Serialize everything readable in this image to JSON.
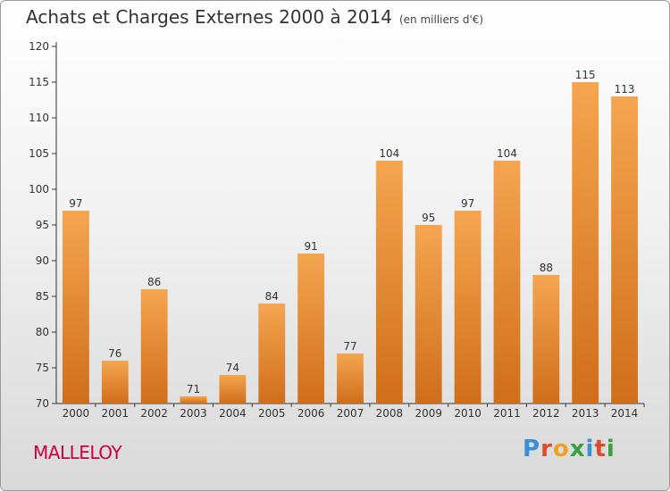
{
  "header": {
    "title": "Achats et Charges Externes 2000 à 2014",
    "unit": "(en milliers d'€)"
  },
  "footer": {
    "place": "MALLELOY",
    "logo": [
      "P",
      "r",
      "o",
      "x",
      "i",
      "t",
      "i"
    ]
  },
  "colors": {
    "bar_top": "#f5a550",
    "bar_bottom": "#d06e1a",
    "place": "#cc0044",
    "logo": [
      "#3a8fd6",
      "#e04a2a",
      "#f0a020",
      "#3aa040",
      "#3a8fd6",
      "#e04a2a",
      "#3aa040"
    ]
  },
  "chart_data": {
    "type": "bar",
    "title": "Achats et Charges Externes 2000 à 2014",
    "subtitle": "(en milliers d'€)",
    "categories": [
      "2000",
      "2001",
      "2002",
      "2003",
      "2004",
      "2005",
      "2006",
      "2007",
      "2008",
      "2009",
      "2010",
      "2011",
      "2012",
      "2013",
      "2014"
    ],
    "values": [
      97,
      76,
      86,
      71,
      74,
      84,
      91,
      77,
      104,
      95,
      97,
      104,
      88,
      115,
      113
    ],
    "ylim": [
      70,
      120
    ],
    "yticks": [
      70,
      75,
      80,
      85,
      90,
      95,
      100,
      105,
      110,
      115,
      120
    ],
    "grid": false,
    "data_labels": true
  }
}
